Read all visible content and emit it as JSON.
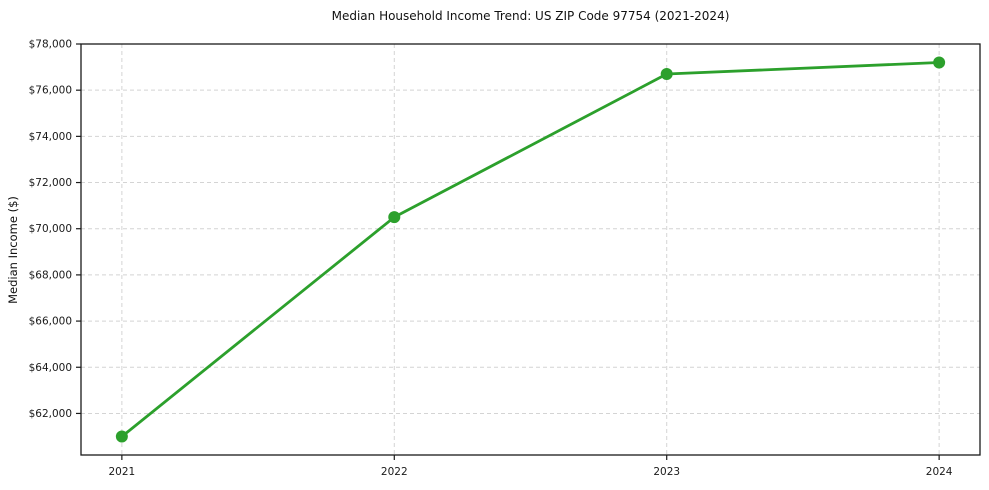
{
  "chart": {
    "title": "Median Household Income Trend: US ZIP Code 97754 (2021-2024)",
    "ylabel": "Median Income ($)"
  },
  "chart_data": {
    "type": "line",
    "title": "Median Household Income Trend: US ZIP Code 97754 (2021-2024)",
    "xlabel": "",
    "ylabel": "Median Income ($)",
    "x": [
      2021,
      2022,
      2023,
      2024
    ],
    "categories": [
      "2021",
      "2022",
      "2023",
      "2024"
    ],
    "series": [
      {
        "name": "Median Household Income",
        "values": [
          61000,
          70500,
          76700,
          77200
        ]
      }
    ],
    "xtick_labels": [
      "2021",
      "2022",
      "2023",
      "2024"
    ],
    "yticks": [
      62000,
      64000,
      66000,
      68000,
      70000,
      72000,
      74000,
      76000,
      78000
    ],
    "ytick_labels": [
      "$62,000",
      "$64,000",
      "$66,000",
      "$68,000",
      "$70,000",
      "$72,000",
      "$74,000",
      "$76,000",
      "$78,000"
    ],
    "xlim": [
      2020.85,
      2024.15
    ],
    "ylim": [
      60200,
      78000
    ],
    "grid": true,
    "grid_style": "dashed",
    "legend": "none",
    "line_color": "#2ca02c",
    "marker": "circle",
    "background": "#ffffff"
  }
}
